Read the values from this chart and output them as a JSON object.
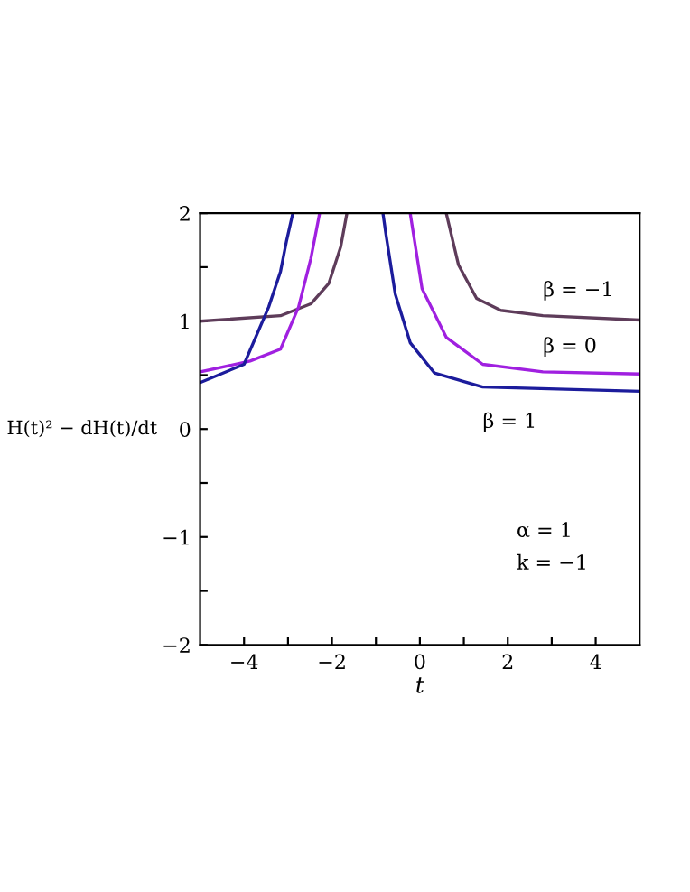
{
  "chart_data": {
    "type": "line",
    "xlabel": "t",
    "ylabel": "H(t)² − dH(t)/dt",
    "xlim": [
      -5,
      5
    ],
    "ylim": [
      -2,
      2
    ],
    "xticks": [
      {
        "value": -4,
        "label": "−4"
      },
      {
        "value": -3,
        "label": null
      },
      {
        "value": -2,
        "label": "−2"
      },
      {
        "value": -1,
        "label": null
      },
      0,
      {
        "value": 1,
        "label": null
      },
      2,
      {
        "value": 3,
        "label": null
      },
      4
    ],
    "yticks": [
      {
        "value": -2,
        "label": "−2"
      },
      {
        "value": -1.5,
        "label": null
      },
      {
        "value": -1,
        "label": "−1"
      },
      {
        "value": -0.5,
        "label": null
      },
      0,
      {
        "value": 0.5,
        "label": null
      },
      1,
      {
        "value": 1.5,
        "label": null
      },
      2
    ],
    "grid": false,
    "legend": false,
    "marker": "none",
    "line_style": "solid",
    "series": [
      {
        "name": "β = −1",
        "color": "#5e3c5a",
        "x": [
          -5,
          -3.17,
          -2.48,
          -2.07,
          -1.8,
          -1.66,
          null,
          0.6,
          0.88,
          1.29,
          1.84,
          2.8,
          5
        ],
        "values": [
          1.0,
          1.05,
          1.16,
          1.35,
          1.69,
          2,
          null,
          2,
          1.52,
          1.21,
          1.1,
          1.05,
          1.01
        ]
      },
      {
        "name": "β = 0",
        "color": "#a020e0",
        "x": [
          -5,
          -3.86,
          -3.17,
          -2.76,
          -2.48,
          -2.28,
          null,
          -0.22,
          0.05,
          0.6,
          1.43,
          2.8,
          5
        ],
        "values": [
          0.53,
          0.63,
          0.74,
          1.13,
          1.58,
          2,
          null,
          2,
          1.3,
          0.85,
          0.6,
          0.53,
          0.51
        ]
      },
      {
        "name": "β = 1",
        "color": "#1c1c9c",
        "x": [
          -5,
          -4.0,
          -3.44,
          -3.17,
          -3.03,
          -2.89,
          null,
          -0.84,
          -0.77,
          -0.56,
          -0.22,
          0.33,
          1.43,
          5
        ],
        "values": [
          0.43,
          0.6,
          1.13,
          1.46,
          1.75,
          2,
          null,
          2,
          1.8,
          1.25,
          0.8,
          0.52,
          0.39,
          0.35
        ]
      }
    ],
    "annotations": [
      "α = 1",
      "k = −1"
    ]
  }
}
